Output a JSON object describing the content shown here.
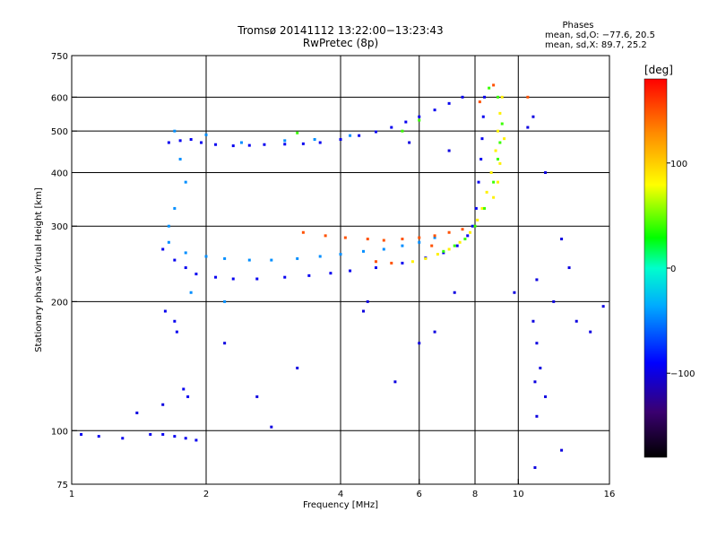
{
  "header": {
    "title_line1": "Tromsø 20141112 13:22:00−13:23:43",
    "title_line2": "RwPretec (8p)"
  },
  "phase_info": {
    "heading": "Phases",
    "line_o": "mean, sd,O: −77.6, 20.5",
    "line_x": "mean, sd,X:  89.7, 25.2"
  },
  "chart_data": {
    "type": "scatter",
    "xlabel": "Frequency [MHz]",
    "ylabel": "Stationary phase Virtual Height [km]",
    "x_scale": "log",
    "y_scale": "log",
    "xlim": [
      1,
      16
    ],
    "ylim": [
      75,
      750
    ],
    "x_ticks": [
      1,
      2,
      4,
      6,
      8,
      10,
      16
    ],
    "x_tick_labels": [
      "1",
      "2",
      "4",
      "6",
      "8",
      "10",
      "16"
    ],
    "y_ticks": [
      75,
      100,
      200,
      300,
      400,
      500,
      600,
      750
    ],
    "y_tick_labels": [
      "75",
      "100",
      "200",
      "300",
      "400",
      "500",
      "600",
      "750"
    ],
    "grid_x": [
      2,
      4,
      6,
      8,
      10
    ],
    "grid_y": [
      100,
      200,
      300,
      400,
      500,
      600
    ],
    "grid": true,
    "colorbar": {
      "label": "[deg]",
      "range": [
        -180,
        180
      ],
      "ticks": [
        100,
        0,
        -100
      ],
      "tick_labels": [
        "100",
        "0",
        "−100"
      ]
    },
    "series": [
      {
        "values": [
          [
            1.65,
            470
          ],
          [
            1.75,
            475
          ],
          [
            1.85,
            478
          ],
          [
            1.95,
            470
          ],
          [
            2.1,
            465
          ],
          [
            2.3,
            462
          ],
          [
            2.5,
            463
          ],
          [
            2.7,
            465
          ],
          [
            3.0,
            466
          ],
          [
            3.3,
            467
          ],
          [
            3.6,
            470
          ],
          [
            4.0,
            478
          ],
          [
            4.4,
            488
          ],
          [
            4.8,
            498
          ],
          [
            5.2,
            510
          ],
          [
            5.6,
            525
          ],
          [
            6.0,
            540
          ],
          [
            6.5,
            560
          ],
          [
            7.0,
            580
          ],
          [
            7.5,
            600
          ],
          [
            1.6,
            265
          ],
          [
            1.7,
            250
          ],
          [
            1.8,
            240
          ],
          [
            1.9,
            232
          ],
          [
            2.1,
            228
          ],
          [
            2.3,
            226
          ],
          [
            2.6,
            226
          ],
          [
            3.0,
            228
          ],
          [
            3.4,
            230
          ],
          [
            3.8,
            233
          ],
          [
            4.2,
            236
          ],
          [
            4.8,
            240
          ],
          [
            5.5,
            246
          ],
          [
            6.2,
            253
          ],
          [
            6.8,
            260
          ],
          [
            7.3,
            270
          ],
          [
            7.7,
            285
          ],
          [
            7.9,
            300
          ],
          [
            8.05,
            330
          ],
          [
            8.15,
            380
          ],
          [
            8.25,
            430
          ],
          [
            8.3,
            480
          ],
          [
            8.35,
            540
          ],
          [
            8.4,
            600
          ],
          [
            1.62,
            190
          ],
          [
            1.7,
            180
          ],
          [
            1.72,
            170
          ],
          [
            1.78,
            125
          ],
          [
            1.82,
            120
          ],
          [
            1.05,
            98
          ],
          [
            1.15,
            97
          ],
          [
            1.3,
            96
          ],
          [
            1.5,
            98
          ],
          [
            1.6,
            98
          ],
          [
            1.7,
            97
          ],
          [
            1.8,
            96
          ],
          [
            1.9,
            95
          ]
        ],
        "phase": -95
      },
      {
        "values": [
          [
            1.65,
            275
          ],
          [
            1.8,
            260
          ],
          [
            2.0,
            255
          ],
          [
            2.2,
            252
          ],
          [
            2.5,
            250
          ],
          [
            2.8,
            250
          ],
          [
            3.2,
            252
          ],
          [
            3.6,
            255
          ],
          [
            4.0,
            258
          ],
          [
            4.5,
            262
          ],
          [
            5.0,
            265
          ],
          [
            5.5,
            270
          ],
          [
            6.0,
            275
          ],
          [
            6.5,
            282
          ],
          [
            1.7,
            500
          ],
          [
            2.0,
            490
          ],
          [
            2.4,
            470
          ],
          [
            3.0,
            475
          ],
          [
            3.5,
            478
          ],
          [
            4.2,
            488
          ],
          [
            1.75,
            430
          ],
          [
            1.8,
            380
          ],
          [
            1.7,
            330
          ],
          [
            1.65,
            300
          ],
          [
            2.2,
            200
          ],
          [
            1.85,
            210
          ]
        ],
        "phase": -45
      },
      {
        "values": [
          [
            5.8,
            248
          ],
          [
            6.2,
            252
          ],
          [
            6.6,
            258
          ],
          [
            7.0,
            265
          ],
          [
            7.4,
            275
          ],
          [
            7.8,
            290
          ],
          [
            8.1,
            310
          ],
          [
            8.3,
            330
          ],
          [
            8.5,
            360
          ],
          [
            8.7,
            400
          ],
          [
            8.9,
            450
          ],
          [
            9.0,
            500
          ],
          [
            9.1,
            550
          ],
          [
            9.2,
            600
          ],
          [
            9.0,
            380
          ],
          [
            8.8,
            350
          ],
          [
            9.1,
            420
          ],
          [
            9.3,
            480
          ]
        ],
        "phase": 85
      },
      {
        "values": [
          [
            6.8,
            262
          ],
          [
            7.2,
            270
          ],
          [
            7.6,
            280
          ],
          [
            8.0,
            300
          ],
          [
            8.4,
            330
          ],
          [
            8.8,
            380
          ],
          [
            9.0,
            430
          ],
          [
            9.1,
            470
          ],
          [
            9.2,
            520
          ],
          [
            9.0,
            600
          ],
          [
            5.5,
            500
          ],
          [
            6.0,
            530
          ],
          [
            8.6,
            630
          ],
          [
            3.2,
            495
          ]
        ],
        "phase": 40
      },
      {
        "values": [
          [
            3.3,
            290
          ],
          [
            3.7,
            285
          ],
          [
            4.1,
            282
          ],
          [
            4.6,
            280
          ],
          [
            5.0,
            278
          ],
          [
            5.5,
            280
          ],
          [
            6.0,
            282
          ],
          [
            6.5,
            285
          ],
          [
            7.0,
            290
          ],
          [
            7.5,
            295
          ],
          [
            8.8,
            640
          ],
          [
            10.5,
            600
          ],
          [
            4.8,
            248
          ],
          [
            5.2,
            246
          ],
          [
            6.4,
            270
          ],
          [
            8.2,
            585
          ]
        ],
        "phase": 150
      },
      {
        "values": [
          [
            10.5,
            510
          ],
          [
            10.8,
            540
          ],
          [
            11.5,
            400
          ],
          [
            12.5,
            280
          ],
          [
            13,
            240
          ],
          [
            11,
            225
          ],
          [
            12,
            200
          ],
          [
            13.5,
            180
          ],
          [
            14.5,
            170
          ],
          [
            15.5,
            195
          ],
          [
            10.8,
            180
          ],
          [
            11,
            160
          ],
          [
            11.2,
            140
          ],
          [
            10.9,
            130
          ],
          [
            11,
            108
          ],
          [
            11.5,
            120
          ],
          [
            12.5,
            90
          ],
          [
            10.9,
            82
          ],
          [
            6,
            160
          ],
          [
            6.5,
            170
          ],
          [
            7.2,
            210
          ],
          [
            5.3,
            130
          ],
          [
            3.2,
            140
          ],
          [
            2.6,
            120
          ],
          [
            2.8,
            102
          ],
          [
            2.2,
            160
          ],
          [
            1.4,
            110
          ],
          [
            1.6,
            115
          ],
          [
            5.7,
            470
          ],
          [
            4.6,
            200
          ],
          [
            4.5,
            190
          ],
          [
            7,
            450
          ],
          [
            9.8,
            210
          ]
        ],
        "phase": -100
      }
    ]
  }
}
